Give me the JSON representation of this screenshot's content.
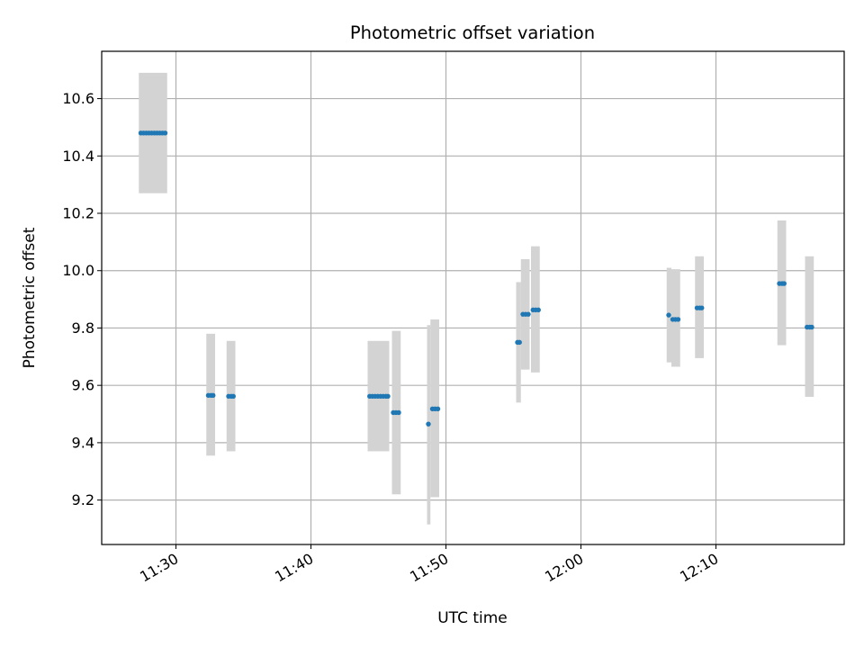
{
  "chart_data": {
    "type": "scatter",
    "title": "Photometric offset variation",
    "xlabel": "UTC time",
    "ylabel": "Photometric offset",
    "x_unit": "minutes after midnight UTC",
    "xlim": [
      684.5,
      739.5
    ],
    "ylim": [
      9.045,
      10.765
    ],
    "grid": true,
    "x_ticks": [
      {
        "value": 690,
        "label": "11:30"
      },
      {
        "value": 700,
        "label": "11:40"
      },
      {
        "value": 710,
        "label": "11:50"
      },
      {
        "value": 720,
        "label": "12:00"
      },
      {
        "value": 730,
        "label": "12:10"
      }
    ],
    "y_ticks": [
      {
        "value": 9.2,
        "label": "9.2"
      },
      {
        "value": 9.4,
        "label": "9.4"
      },
      {
        "value": 9.6,
        "label": "9.6"
      },
      {
        "value": 9.8,
        "label": "9.8"
      },
      {
        "value": 10.0,
        "label": "10.0"
      },
      {
        "value": 10.2,
        "label": "10.2"
      },
      {
        "value": 10.4,
        "label": "10.4"
      },
      {
        "value": 10.6,
        "label": "10.6"
      }
    ],
    "colors": {
      "points": "#1f77b4",
      "bands": "#d3d3d3",
      "grid": "#b0b0b0"
    },
    "bands": [
      {
        "x0": 687.25,
        "x1": 689.35,
        "y0": 10.27,
        "y1": 10.69
      },
      {
        "x0": 692.25,
        "x1": 692.9,
        "y0": 9.355,
        "y1": 9.78
      },
      {
        "x0": 693.75,
        "x1": 694.4,
        "y0": 9.37,
        "y1": 9.755
      },
      {
        "x0": 704.2,
        "x1": 705.8,
        "y0": 9.37,
        "y1": 9.755
      },
      {
        "x0": 706.0,
        "x1": 706.65,
        "y0": 9.22,
        "y1": 9.79
      },
      {
        "x0": 708.6,
        "x1": 708.85,
        "y0": 9.115,
        "y1": 9.81
      },
      {
        "x0": 708.85,
        "x1": 709.5,
        "y0": 9.21,
        "y1": 9.83
      },
      {
        "x0": 715.2,
        "x1": 715.55,
        "y0": 9.54,
        "y1": 9.96
      },
      {
        "x0": 715.55,
        "x1": 716.2,
        "y0": 9.655,
        "y1": 10.04
      },
      {
        "x0": 716.3,
        "x1": 716.95,
        "y0": 9.645,
        "y1": 10.085
      },
      {
        "x0": 726.35,
        "x1": 726.7,
        "y0": 9.68,
        "y1": 10.01
      },
      {
        "x0": 726.7,
        "x1": 727.35,
        "y0": 9.665,
        "y1": 10.005
      },
      {
        "x0": 728.45,
        "x1": 729.1,
        "y0": 9.695,
        "y1": 10.05
      },
      {
        "x0": 734.55,
        "x1": 735.2,
        "y0": 9.74,
        "y1": 10.175
      },
      {
        "x0": 736.6,
        "x1": 737.25,
        "y0": 9.56,
        "y1": 10.05
      }
    ],
    "series": [
      {
        "points": [
          {
            "x": 687.4,
            "y": 10.48
          },
          {
            "x": 687.6,
            "y": 10.48
          },
          {
            "x": 687.8,
            "y": 10.48
          },
          {
            "x": 688.0,
            "y": 10.48
          },
          {
            "x": 688.2,
            "y": 10.48
          },
          {
            "x": 688.4,
            "y": 10.48
          },
          {
            "x": 688.6,
            "y": 10.48
          },
          {
            "x": 688.8,
            "y": 10.48
          },
          {
            "x": 689.0,
            "y": 10.48
          },
          {
            "x": 689.2,
            "y": 10.48
          },
          {
            "x": 692.4,
            "y": 9.565
          },
          {
            "x": 692.6,
            "y": 9.565
          },
          {
            "x": 692.75,
            "y": 9.565
          },
          {
            "x": 693.9,
            "y": 9.562
          },
          {
            "x": 694.1,
            "y": 9.562
          },
          {
            "x": 694.25,
            "y": 9.562
          },
          {
            "x": 704.35,
            "y": 9.562
          },
          {
            "x": 704.55,
            "y": 9.562
          },
          {
            "x": 704.75,
            "y": 9.562
          },
          {
            "x": 704.95,
            "y": 9.562
          },
          {
            "x": 705.15,
            "y": 9.562
          },
          {
            "x": 705.35,
            "y": 9.562
          },
          {
            "x": 705.55,
            "y": 9.562
          },
          {
            "x": 705.7,
            "y": 9.562
          },
          {
            "x": 706.1,
            "y": 9.505
          },
          {
            "x": 706.3,
            "y": 9.505
          },
          {
            "x": 706.5,
            "y": 9.505
          },
          {
            "x": 708.7,
            "y": 9.465
          },
          {
            "x": 709.0,
            "y": 9.518
          },
          {
            "x": 709.2,
            "y": 9.518
          },
          {
            "x": 709.4,
            "y": 9.518
          },
          {
            "x": 715.3,
            "y": 9.75
          },
          {
            "x": 715.45,
            "y": 9.75
          },
          {
            "x": 715.7,
            "y": 9.848
          },
          {
            "x": 715.9,
            "y": 9.848
          },
          {
            "x": 716.1,
            "y": 9.848
          },
          {
            "x": 716.45,
            "y": 9.863
          },
          {
            "x": 716.65,
            "y": 9.863
          },
          {
            "x": 716.85,
            "y": 9.863
          },
          {
            "x": 726.5,
            "y": 9.845
          },
          {
            "x": 726.8,
            "y": 9.83
          },
          {
            "x": 727.0,
            "y": 9.83
          },
          {
            "x": 727.2,
            "y": 9.83
          },
          {
            "x": 728.6,
            "y": 9.87
          },
          {
            "x": 728.8,
            "y": 9.87
          },
          {
            "x": 728.95,
            "y": 9.87
          },
          {
            "x": 734.7,
            "y": 9.955
          },
          {
            "x": 734.9,
            "y": 9.955
          },
          {
            "x": 735.05,
            "y": 9.955
          },
          {
            "x": 736.75,
            "y": 9.803
          },
          {
            "x": 736.95,
            "y": 9.803
          },
          {
            "x": 737.1,
            "y": 9.803
          }
        ]
      }
    ]
  }
}
